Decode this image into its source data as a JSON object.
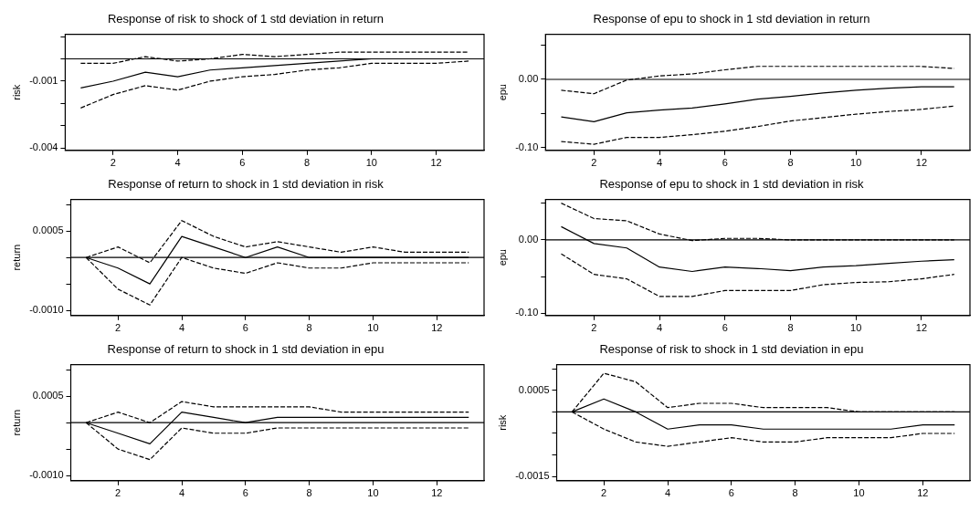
{
  "chart_data": [
    {
      "type": "line",
      "title": "Response of risk to shock of 1 std deviation in return",
      "ylabel": "risk",
      "x": [
        1,
        2,
        3,
        4,
        5,
        6,
        7,
        8,
        9,
        10,
        11,
        12,
        13
      ],
      "xlim": [
        0.52,
        13.48
      ],
      "xticks": [
        2,
        4,
        6,
        8,
        10,
        12
      ],
      "ylim": [
        -0.0041,
        0.0011
      ],
      "yticks": [
        {
          "value": 0.001,
          "label": null
        },
        {
          "value": 0,
          "label": null
        },
        -0.001,
        {
          "value": -0.002,
          "label": null
        },
        {
          "value": -0.003,
          "label": null
        },
        -0.004
      ],
      "grid": false,
      "legend": false,
      "marker": "none",
      "ref_lines": [
        {
          "axis": "y",
          "value": 0
        }
      ],
      "series": [
        {
          "color": "#000000",
          "line_style": "solid",
          "values": [
            -0.0013,
            -0.001,
            -0.0006,
            -0.0008,
            -0.0005,
            -0.0004,
            -0.0003,
            -0.0002,
            -0.0001,
            0,
            0,
            0,
            0
          ]
        },
        {
          "color": "#000000",
          "line_style": "dashed",
          "values": [
            -0.0002,
            -0.0002,
            0.0001,
            -0.0001,
            0,
            0.0002,
            0.0001,
            0.0002,
            0.0003,
            0.0003,
            0.0003,
            0.0003,
            0.0003
          ]
        },
        {
          "color": "#000000",
          "line_style": "dashed",
          "values": [
            -0.0022,
            -0.0016,
            -0.0012,
            -0.0014,
            -0.001,
            -0.0008,
            -0.0007,
            -0.0005,
            -0.0004,
            -0.0002,
            -0.0002,
            -0.0002,
            -0.0001
          ]
        }
      ]
    },
    {
      "type": "line",
      "title": "Response of epu to shock in 1 std deviation in return",
      "ylabel": "epu",
      "x": [
        1,
        2,
        3,
        4,
        5,
        6,
        7,
        8,
        9,
        10,
        11,
        12,
        13
      ],
      "xlim": [
        0.52,
        13.48
      ],
      "xticks": [
        2,
        4,
        6,
        8,
        10,
        12
      ],
      "ylim": [
        -0.104,
        0.066
      ],
      "yticks": [
        {
          "value": 0.05,
          "label": null
        },
        {
          "value": 0,
          "label": "0.00"
        },
        {
          "value": -0.05,
          "label": null
        },
        {
          "value": -0.1,
          "label": "-0.10"
        }
      ],
      "grid": false,
      "legend": false,
      "marker": "none",
      "ref_lines": [
        {
          "axis": "y",
          "value": 0
        }
      ],
      "series": [
        {
          "color": "#000000",
          "line_style": "solid",
          "values": [
            -0.055,
            -0.062,
            -0.049,
            -0.045,
            -0.042,
            -0.036,
            -0.029,
            -0.025,
            -0.02,
            -0.016,
            -0.013,
            -0.011,
            -0.011
          ]
        },
        {
          "color": "#000000",
          "line_style": "dashed",
          "values": [
            -0.016,
            -0.021,
            -0.001,
            0.005,
            0.008,
            0.014,
            0.019,
            0.019,
            0.019,
            0.019,
            0.019,
            0.019,
            0.016
          ]
        },
        {
          "color": "#000000",
          "line_style": "dashed",
          "values": [
            -0.091,
            -0.095,
            -0.085,
            -0.085,
            -0.081,
            -0.076,
            -0.069,
            -0.061,
            -0.056,
            -0.051,
            -0.047,
            -0.044,
            -0.039
          ]
        }
      ]
    },
    {
      "type": "line",
      "title": "Response of return to shock in 1 std deviation in risk",
      "ylabel": "return",
      "x": [
        1,
        2,
        3,
        4,
        5,
        6,
        7,
        8,
        9,
        10,
        11,
        12,
        13
      ],
      "xlim": [
        0.52,
        13.48
      ],
      "xticks": [
        2,
        4,
        6,
        8,
        10,
        12
      ],
      "ylim": [
        -0.0011,
        0.0011
      ],
      "yticks": [
        {
          "value": 0.001,
          "label": null
        },
        0.0005,
        {
          "value": 0,
          "label": null
        },
        {
          "value": -0.0005,
          "label": null
        },
        {
          "value": -0.001,
          "label": "-0.0010"
        }
      ],
      "grid": false,
      "legend": false,
      "marker": "none",
      "ref_lines": [
        {
          "axis": "y",
          "value": 0
        }
      ],
      "series": [
        {
          "color": "#000000",
          "line_style": "solid",
          "values": [
            0,
            -0.0002,
            -0.0005,
            0.0004,
            0.0002,
            0,
            0.0002,
            0,
            0,
            0,
            0,
            0,
            0
          ]
        },
        {
          "color": "#000000",
          "line_style": "dashed",
          "values": [
            0,
            0.0002,
            -0.0001,
            0.0007,
            0.0004,
            0.0002,
            0.0003,
            0.0002,
            0.0001,
            0.0002,
            0.0001,
            0.0001,
            0.0001
          ]
        },
        {
          "color": "#000000",
          "line_style": "dashed",
          "values": [
            0,
            -0.0006,
            -0.0009,
            0,
            -0.0002,
            -0.0003,
            -0.0001,
            -0.0002,
            -0.0002,
            -0.0001,
            -0.0001,
            -0.0001,
            -0.0001
          ]
        }
      ]
    },
    {
      "type": "line",
      "title": "Response of epu to shock in 1 std deviation in risk",
      "ylabel": "epu",
      "x": [
        1,
        2,
        3,
        4,
        5,
        6,
        7,
        8,
        9,
        10,
        11,
        12,
        13
      ],
      "xlim": [
        0.52,
        13.48
      ],
      "xticks": [
        2,
        4,
        6,
        8,
        10,
        12
      ],
      "ylim": [
        -0.103,
        0.055
      ],
      "yticks": [
        {
          "value": 0.05,
          "label": null
        },
        {
          "value": 0,
          "label": "0.00"
        },
        {
          "value": -0.05,
          "label": null
        },
        {
          "value": -0.1,
          "label": "-0.10"
        }
      ],
      "grid": false,
      "legend": false,
      "marker": "none",
      "ref_lines": [
        {
          "axis": "y",
          "value": 0
        }
      ],
      "series": [
        {
          "color": "#000000",
          "line_style": "solid",
          "values": [
            0.018,
            -0.005,
            -0.011,
            -0.037,
            -0.043,
            -0.037,
            -0.039,
            -0.042,
            -0.037,
            -0.035,
            -0.032,
            -0.029,
            -0.027
          ]
        },
        {
          "color": "#000000",
          "line_style": "dashed",
          "values": [
            0.05,
            0.029,
            0.026,
            0.008,
            -0.001,
            0.002,
            0.002,
            0,
            0,
            0,
            0,
            0,
            0
          ]
        },
        {
          "color": "#000000",
          "line_style": "dashed",
          "values": [
            -0.019,
            -0.047,
            -0.053,
            -0.077,
            -0.077,
            -0.069,
            -0.069,
            -0.069,
            -0.061,
            -0.058,
            -0.057,
            -0.053,
            -0.047
          ]
        }
      ]
    },
    {
      "type": "line",
      "title": "Response of return to shock in 1 std deviation in epu",
      "ylabel": "return",
      "x": [
        1,
        2,
        3,
        4,
        5,
        6,
        7,
        8,
        9,
        10,
        11,
        12,
        13
      ],
      "xlim": [
        0.52,
        13.48
      ],
      "xticks": [
        2,
        4,
        6,
        8,
        10,
        12
      ],
      "ylim": [
        -0.0011,
        0.0011
      ],
      "yticks": [
        {
          "value": 0.001,
          "label": null
        },
        0.0005,
        {
          "value": 0,
          "label": null
        },
        {
          "value": -0.0005,
          "label": null
        },
        {
          "value": -0.001,
          "label": "-0.0010"
        }
      ],
      "grid": false,
      "legend": false,
      "marker": "none",
      "ref_lines": [
        {
          "axis": "y",
          "value": 0
        }
      ],
      "series": [
        {
          "color": "#000000",
          "line_style": "solid",
          "values": [
            0,
            -0.0002,
            -0.0004,
            0.0002,
            0.0001,
            0,
            0.0001,
            0.0001,
            0.0001,
            0.0001,
            0.0001,
            0.0001,
            0.0001
          ]
        },
        {
          "color": "#000000",
          "line_style": "dashed",
          "values": [
            0,
            0.0002,
            0,
            0.0004,
            0.0003,
            0.0003,
            0.0003,
            0.0003,
            0.0002,
            0.0002,
            0.0002,
            0.0002,
            0.0002
          ]
        },
        {
          "color": "#000000",
          "line_style": "dashed",
          "values": [
            0,
            -0.0005,
            -0.0007,
            -0.0001,
            -0.0002,
            -0.0002,
            -0.0001,
            -0.0001,
            -0.0001,
            -0.0001,
            -0.0001,
            -0.0001,
            -0.0001
          ]
        }
      ]
    },
    {
      "type": "line",
      "title": "Response of risk to shock in 1 std deviation in epu",
      "ylabel": "risk",
      "x": [
        1,
        2,
        3,
        4,
        5,
        6,
        7,
        8,
        9,
        10,
        11,
        12,
        13
      ],
      "xlim": [
        0.52,
        13.48
      ],
      "xticks": [
        2,
        4,
        6,
        8,
        10,
        12
      ],
      "ylim": [
        -0.0016,
        0.0011
      ],
      "yticks": [
        {
          "value": 0.001,
          "label": null
        },
        0.0005,
        {
          "value": 0,
          "label": null
        },
        {
          "value": -0.0005,
          "label": null
        },
        {
          "value": -0.001,
          "label": null
        },
        {
          "value": -0.0015,
          "label": "-0.0015"
        }
      ],
      "grid": false,
      "legend": false,
      "marker": "none",
      "ref_lines": [
        {
          "axis": "y",
          "value": 0
        }
      ],
      "series": [
        {
          "color": "#000000",
          "line_style": "solid",
          "values": [
            0,
            0.0003,
            0,
            -0.0004,
            -0.0003,
            -0.0003,
            -0.0004,
            -0.0004,
            -0.0004,
            -0.0004,
            -0.0004,
            -0.0003,
            -0.0003
          ]
        },
        {
          "color": "#000000",
          "line_style": "dashed",
          "values": [
            0,
            0.0009,
            0.0007,
            0.0001,
            0.0002,
            0.0002,
            0.0001,
            0.0001,
            0.0001,
            0,
            0,
            0,
            0
          ]
        },
        {
          "color": "#000000",
          "line_style": "dashed",
          "values": [
            0,
            -0.0004,
            -0.0007,
            -0.0008,
            -0.0007,
            -0.0006,
            -0.0007,
            -0.0007,
            -0.0006,
            -0.0006,
            -0.0006,
            -0.0005,
            -0.0005
          ]
        }
      ]
    }
  ]
}
